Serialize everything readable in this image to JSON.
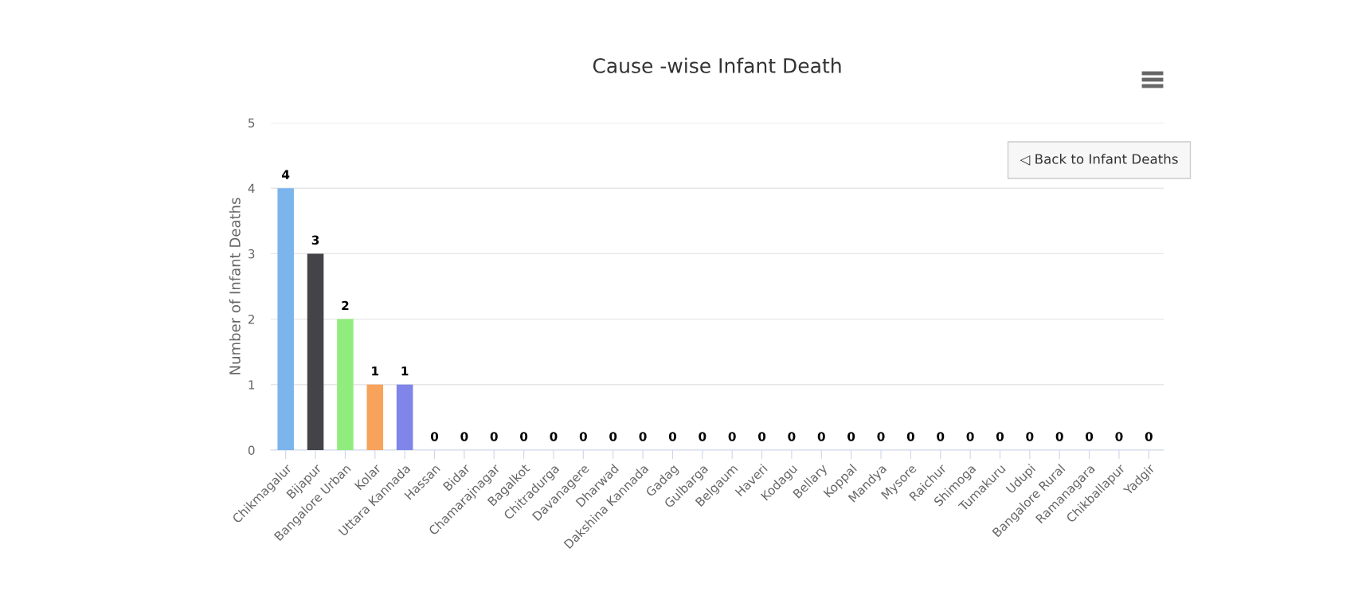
{
  "chart_data": {
    "type": "bar",
    "title": "Cause -wise Infant Death",
    "ylabel": "Number of Infant Deaths",
    "categories": [
      "Chikmagalur",
      "Bijapur",
      "Bangalore Urban",
      "Kolar",
      "Uttara Kannada",
      "Hassan",
      "Bidar",
      "Chamarajnagar",
      "Bagalkot",
      "Chitradurga",
      "Davanagere",
      "Dharwad",
      "Dakshina Kannada",
      "Gadag",
      "Gulbarga",
      "Belgaum",
      "Haveri",
      "Kodagu",
      "Bellary",
      "Koppal",
      "Mandya",
      "Mysore",
      "Raichur",
      "Shimoga",
      "Tumakuru",
      "Udupi",
      "Bangalore Rural",
      "Ramanagara",
      "Chikballapur",
      "Yadgir"
    ],
    "values": [
      4,
      3,
      2,
      1,
      1,
      0,
      0,
      0,
      0,
      0,
      0,
      0,
      0,
      0,
      0,
      0,
      0,
      0,
      0,
      0,
      0,
      0,
      0,
      0,
      0,
      0,
      0,
      0,
      0,
      0
    ],
    "colors": [
      "#7cb5ec",
      "#434348",
      "#90ed7d",
      "#f7a35c",
      "#8085e9",
      "#f15c80",
      "#e4d354",
      "#2b908f",
      "#f45b5b",
      "#91e8e1",
      "#7cb5ec",
      "#434348",
      "#90ed7d",
      "#f7a35c",
      "#8085e9",
      "#f15c80",
      "#e4d354",
      "#2b908f",
      "#f45b5b",
      "#91e8e1",
      "#7cb5ec",
      "#434348",
      "#90ed7d",
      "#f7a35c",
      "#8085e9",
      "#f15c80",
      "#e4d354",
      "#2b908f",
      "#f45b5b",
      "#91e8e1"
    ],
    "ylim": [
      0,
      5
    ],
    "yticks": [
      0,
      1,
      2,
      3,
      4,
      5
    ],
    "grid": "y",
    "data_labels": true,
    "legend": false,
    "annotations": [
      "◁ Back to Infant Deaths"
    ]
  }
}
